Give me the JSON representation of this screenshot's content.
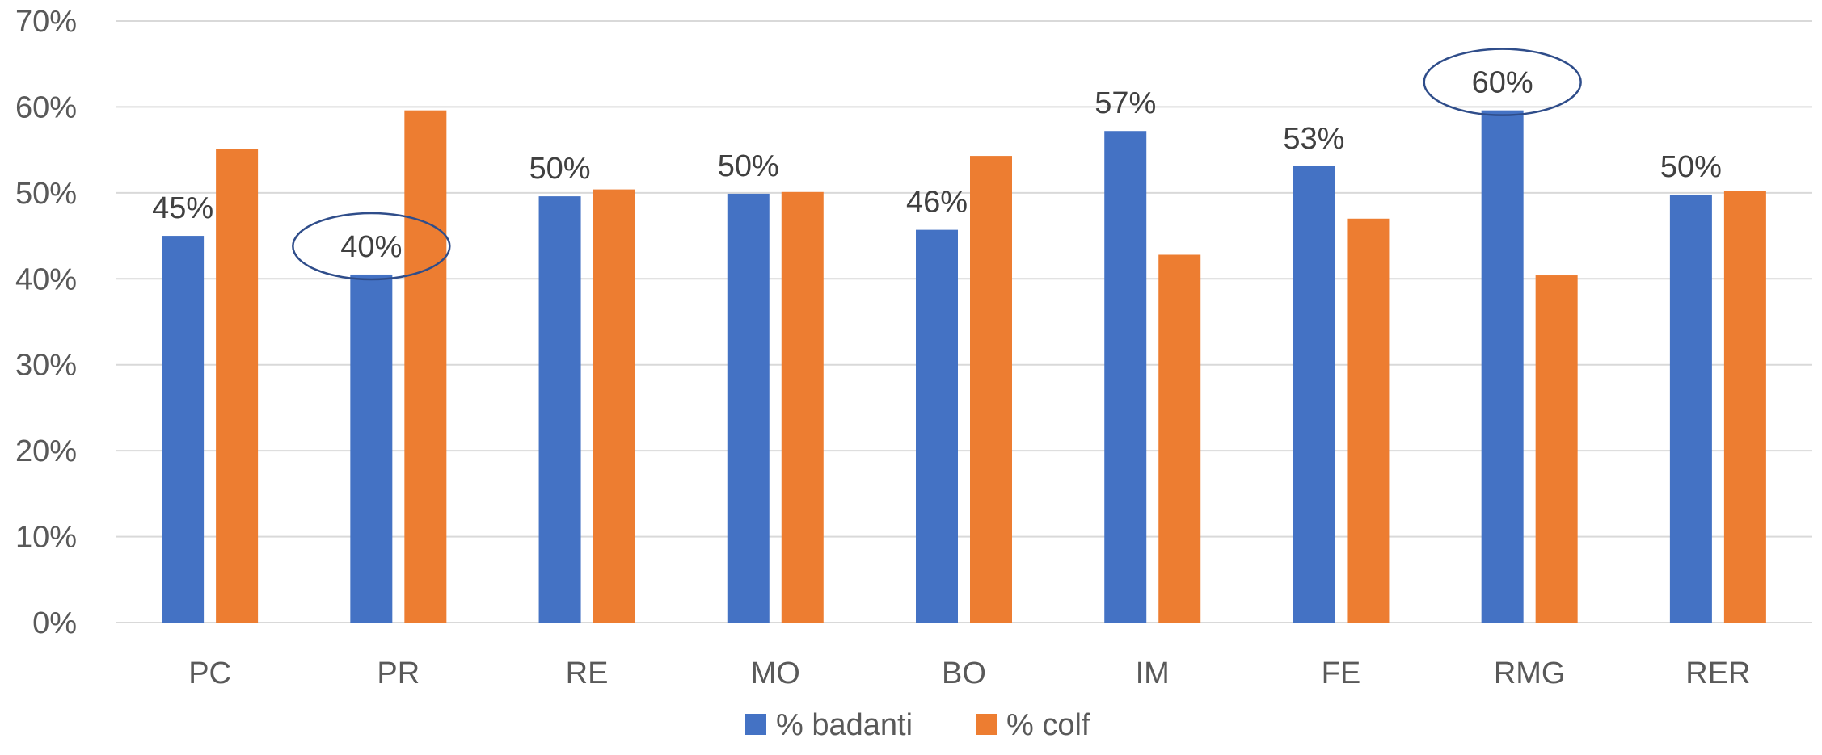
{
  "chart_data": {
    "type": "bar",
    "categories": [
      "PC",
      "PR",
      "RE",
      "MO",
      "BO",
      "IM",
      "FE",
      "RMG",
      "RER"
    ],
    "series": [
      {
        "name": "% badanti",
        "color": "#4472C4",
        "values": [
          45,
          40.5,
          49.6,
          49.9,
          45.7,
          57.2,
          53.1,
          59.6,
          49.8
        ]
      },
      {
        "name": "% colf",
        "color": "#ED7D31",
        "values": [
          55.1,
          59.6,
          50.4,
          50.1,
          54.3,
          42.8,
          47.0,
          40.4,
          50.2
        ]
      }
    ],
    "data_labels": [
      "45%",
      "40%",
      "50%",
      "50%",
      "46%",
      "57%",
      "53%",
      "60%",
      "50%"
    ],
    "highlighted_categories": [
      "PR",
      "RMG"
    ],
    "highlight_color": "#2F4D8A",
    "y_ticks": [
      "0%",
      "10%",
      "20%",
      "30%",
      "40%",
      "50%",
      "60%",
      "70%"
    ],
    "ylim": [
      0,
      70
    ],
    "grid": true,
    "legend_position": "bottom",
    "title": "",
    "xlabel": "",
    "ylabel": ""
  }
}
